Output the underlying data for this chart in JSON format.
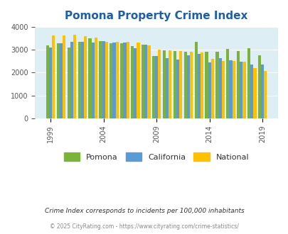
{
  "title": "Pomona Property Crime Index",
  "years": [
    1999,
    2000,
    2001,
    2002,
    2003,
    2004,
    2005,
    2006,
    2007,
    2008,
    2009,
    2010,
    2011,
    2012,
    2013,
    2014,
    2015,
    2016,
    2017,
    2018,
    2019,
    2020
  ],
  "pomona": [
    3200,
    3300,
    3100,
    3350,
    3500,
    3380,
    3300,
    3300,
    3150,
    3220,
    2720,
    2980,
    2950,
    2900,
    3350,
    2920,
    2900,
    3050,
    2950,
    3060,
    2750,
    null
  ],
  "california": [
    3110,
    3290,
    3340,
    3340,
    3320,
    3390,
    3310,
    3310,
    3060,
    3230,
    2730,
    2620,
    2560,
    2760,
    2830,
    2460,
    2620,
    2550,
    2480,
    2360,
    2340,
    null
  ],
  "national": [
    3620,
    3640,
    3650,
    3600,
    3540,
    3350,
    3360,
    3350,
    3320,
    3200,
    3020,
    2980,
    2960,
    2900,
    2870,
    2590,
    2510,
    2500,
    2470,
    2200,
    2090,
    null
  ],
  "pomona_color": "#7db23a",
  "california_color": "#5b9bd5",
  "national_color": "#ffc000",
  "bg_color": "#ddeef5",
  "title_color": "#1f5fa6",
  "legend_labels": [
    "Pomona",
    "California",
    "National"
  ],
  "subtitle": "Crime Index corresponds to incidents per 100,000 inhabitants",
  "footer": "© 2025 CityRating.com - https://www.cityrating.com/crime-statistics/",
  "ylim": [
    0,
    4000
  ],
  "yticks": [
    0,
    1000,
    2000,
    3000,
    4000
  ],
  "xtick_years": [
    1999,
    2004,
    2009,
    2014,
    2019
  ]
}
